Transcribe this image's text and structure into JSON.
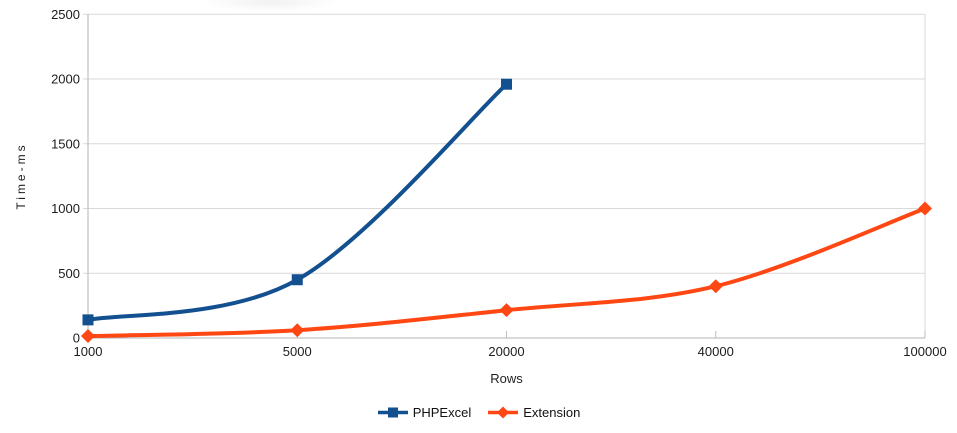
{
  "chart_data": {
    "type": "line",
    "title": "",
    "xlabel": "Rows",
    "ylabel": "Time-ms",
    "categories": [
      "1000",
      "5000",
      "20000",
      "40000",
      "100000"
    ],
    "y_ticks": [
      0,
      500,
      1000,
      1500,
      2000,
      2500
    ],
    "ylim": [
      0,
      2500
    ],
    "grid": true,
    "smooth_lines": true,
    "legend_position": "bottom",
    "series": [
      {
        "name": "PHPExcel",
        "color": "#12508F",
        "marker": "square",
        "values": [
          140,
          450,
          1960,
          null,
          null
        ]
      },
      {
        "name": "Extension",
        "color": "#FF4713",
        "marker": "diamond",
        "values": [
          15,
          60,
          215,
          400,
          1000
        ]
      }
    ],
    "colors": {
      "gridline": "#d9d9d9",
      "axis": "#b3b3b3",
      "tick": "#bdbdbd",
      "text": "#1c1c1c",
      "background": "#ffffff"
    }
  }
}
